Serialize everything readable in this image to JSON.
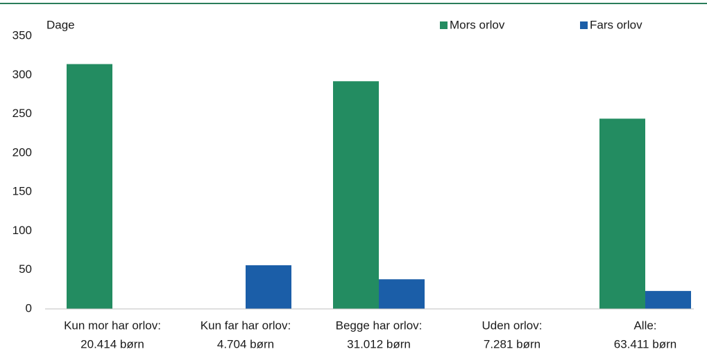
{
  "chart_data": {
    "type": "bar",
    "y_label": "Dage",
    "categories": [
      [
        "Kun mor har orlov:",
        "20.414 børn"
      ],
      [
        "Kun far har orlov:",
        "4.704 børn"
      ],
      [
        "Begge har orlov:",
        "31.012 børn"
      ],
      [
        "Uden orlov:",
        "7.281 børn"
      ],
      [
        "Alle:",
        "63.411 børn"
      ]
    ],
    "series": [
      {
        "name": "Mors orlov",
        "color": "#238c61",
        "values": [
          314,
          null,
          292,
          null,
          244
        ]
      },
      {
        "name": "Fars orlov",
        "color": "#1b5ea8",
        "values": [
          null,
          56,
          38,
          null,
          23
        ]
      }
    ],
    "ylim": [
      0,
      350
    ],
    "yticks": [
      0,
      50,
      100,
      150,
      200,
      250,
      300,
      350
    ],
    "grid": false
  }
}
